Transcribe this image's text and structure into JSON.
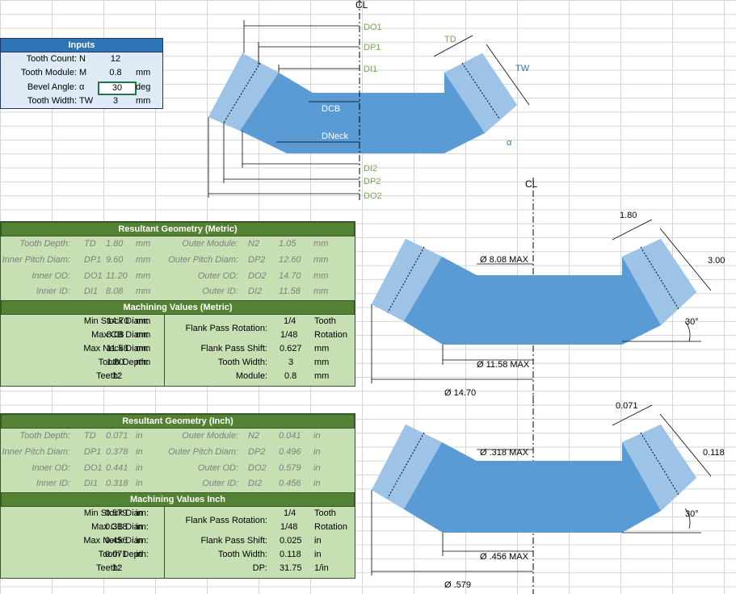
{
  "inputs": {
    "title": "Inputs",
    "rows": [
      {
        "label": "Tooth Count:",
        "sym": "N",
        "value": "12",
        "unit": ""
      },
      {
        "label": "Tooth Module:",
        "sym": "M",
        "value": "0.8",
        "unit": "mm"
      },
      {
        "label": "Bevel Angle:",
        "sym": "α",
        "value": "30",
        "unit": "deg"
      },
      {
        "label": "Tooth Width:",
        "sym": "TW",
        "value": "3",
        "unit": "mm"
      }
    ]
  },
  "diagram": {
    "cl": "CL",
    "labels": [
      "DO1",
      "DP1",
      "DI1",
      "DCB",
      "DNeck",
      "DI2",
      "DP2",
      "DO2",
      "TD",
      "TW",
      "α"
    ]
  },
  "metric": {
    "geo_title": "Resultant Geometry (Metric)",
    "geo_rows": [
      {
        "l1": "Tooth Depth:",
        "s1": "TD",
        "v1": "1.80",
        "u1": "mm",
        "l2": "Outer Module:",
        "s2": "N2",
        "v2": "1.05",
        "u2": "mm"
      },
      {
        "l1": "Inner Pitch Diam:",
        "s1": "DP1",
        "v1": "9.60",
        "u1": "mm",
        "l2": "Outer Pitch Diam:",
        "s2": "DP2",
        "v2": "12.60",
        "u2": "mm"
      },
      {
        "l1": "Inner OD:",
        "s1": "DO1",
        "v1": "11.20",
        "u1": "mm",
        "l2": "Outer OD:",
        "s2": "DO2",
        "v2": "14.70",
        "u2": "mm"
      },
      {
        "l1": "Inner ID:",
        "s1": "DI1",
        "v1": "8.08",
        "u1": "mm",
        "l2": "Outer ID:",
        "s2": "DI2",
        "v2": "11.58",
        "u2": "mm"
      }
    ],
    "mach_title": "Machining Values (Metric)",
    "mach_left": [
      {
        "l": "Min Stock Diam:",
        "v": "14.70",
        "u": "mm"
      },
      {
        "l": "Max CB Diam:",
        "v": "8.08",
        "u": "mm"
      },
      {
        "l": "Max Neck Diam:",
        "v": "11.58",
        "u": "mm"
      },
      {
        "l": "Tooth Depth:",
        "v": "1.80",
        "u": "mm"
      },
      {
        "l": "Teeth:",
        "v": "12",
        "u": ""
      }
    ],
    "mach_right": [
      {
        "l": "Flank Pass Rotation:",
        "v": "1/4",
        "u": "Tooth",
        "v2": "1/48",
        "u2": "Rotation"
      },
      {
        "l": "Flank Pass Shift:",
        "v": "0.627",
        "u": "mm"
      },
      {
        "l": "Tooth Width:",
        "v": "3",
        "u": "mm"
      },
      {
        "l": "Module:",
        "v": "0.8",
        "u": "mm"
      }
    ]
  },
  "inch": {
    "geo_title": "Resultant Geometry (Inch)",
    "geo_rows": [
      {
        "l1": "Tooth Depth:",
        "s1": "TD",
        "v1": "0.071",
        "u1": "in",
        "l2": "Outer Module:",
        "s2": "N2",
        "v2": "0.041",
        "u2": "in"
      },
      {
        "l1": "Inner Pitch Diam:",
        "s1": "DP1",
        "v1": "0.378",
        "u1": "in",
        "l2": "Outer Pitch Diam:",
        "s2": "DP2",
        "v2": "0.496",
        "u2": "in"
      },
      {
        "l1": "Inner OD:",
        "s1": "DO1",
        "v1": "0.441",
        "u1": "in",
        "l2": "Outer OD:",
        "s2": "DO2",
        "v2": "0.579",
        "u2": "in"
      },
      {
        "l1": "Inner ID:",
        "s1": "DI1",
        "v1": "0.318",
        "u1": "in",
        "l2": "Outer ID:",
        "s2": "DI2",
        "v2": "0.456",
        "u2": "in"
      }
    ],
    "mach_title": "Machining Values Inch",
    "mach_left": [
      {
        "l": "Min Stock Diam:",
        "v": "0.579",
        "u": "in"
      },
      {
        "l": "Max CB Diam:",
        "v": "0.318",
        "u": "in"
      },
      {
        "l": "Max Neck Diam:",
        "v": "0.456",
        "u": "in"
      },
      {
        "l": "Tooth Depth:",
        "v": "0.071",
        "u": "in"
      },
      {
        "l": "Teeth:",
        "v": "12",
        "u": ""
      }
    ],
    "mach_right": [
      {
        "l": "Flank Pass Rotation:",
        "v": "1/4",
        "u": "Tooth",
        "v2": "1/48",
        "u2": "Rotation"
      },
      {
        "l": "Flank Pass Shift:",
        "v": "0.025",
        "u": "in"
      },
      {
        "l": "Tooth Width:",
        "v": "0.118",
        "u": "in"
      },
      {
        "l": "DP:",
        "v": "31.75",
        "u": "1/in"
      }
    ]
  },
  "metric_drawing": {
    "td": "1.80",
    "tw": "3.00",
    "cb": "Ø 8.08 MAX",
    "angle": "30°",
    "neck": "Ø 11.58 MAX",
    "stock": "Ø 14.70"
  },
  "inch_drawing": {
    "td": "0.071",
    "tw": "0.118",
    "cb": "Ø .318 MAX",
    "angle": "30°",
    "neck": "Ø .456 MAX",
    "stock": "Ø .579"
  },
  "colors": {
    "part_main": "#5b9bd5",
    "part_light": "#9dc3e6",
    "green": "#c6e0b4",
    "green_hdr": "#548235",
    "blue_hdr": "#2e75b6"
  }
}
